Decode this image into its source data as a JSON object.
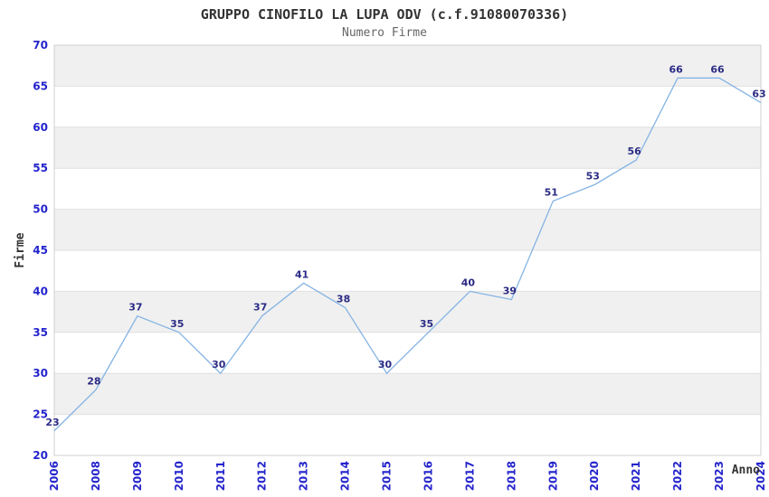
{
  "chart_data": {
    "type": "line",
    "title": "GRUPPO CINOFILO LA LUPA ODV (c.f.91080070336)",
    "subtitle": "Numero Firme",
    "xlabel": "Anno",
    "ylabel": "Firme",
    "categories": [
      "2006",
      "2008",
      "2009",
      "2010",
      "2011",
      "2012",
      "2013",
      "2014",
      "2015",
      "2016",
      "2017",
      "2018",
      "2019",
      "2020",
      "2021",
      "2022",
      "2023",
      "2024"
    ],
    "values": [
      23,
      28,
      37,
      35,
      30,
      37,
      41,
      38,
      30,
      35,
      40,
      39,
      51,
      53,
      56,
      66,
      66,
      63
    ],
    "ylim": [
      20,
      70
    ],
    "ytick_step": 5,
    "legend_position": "none",
    "grid": "horizontal-bands-alternating",
    "x_tick_rotation_deg": 90,
    "data_labels_shown": true,
    "colors": {
      "line": "#85b4e4",
      "data_label": "#2b2b85",
      "tick_label": "#2424cc",
      "band_fill": "#f0f0f0",
      "grid_line": "#e0e0e0",
      "plot_border": "#d0d0d0",
      "title": "#333333",
      "subtitle": "#666666",
      "axis_title": "#333333",
      "background": "#ffffff"
    }
  }
}
